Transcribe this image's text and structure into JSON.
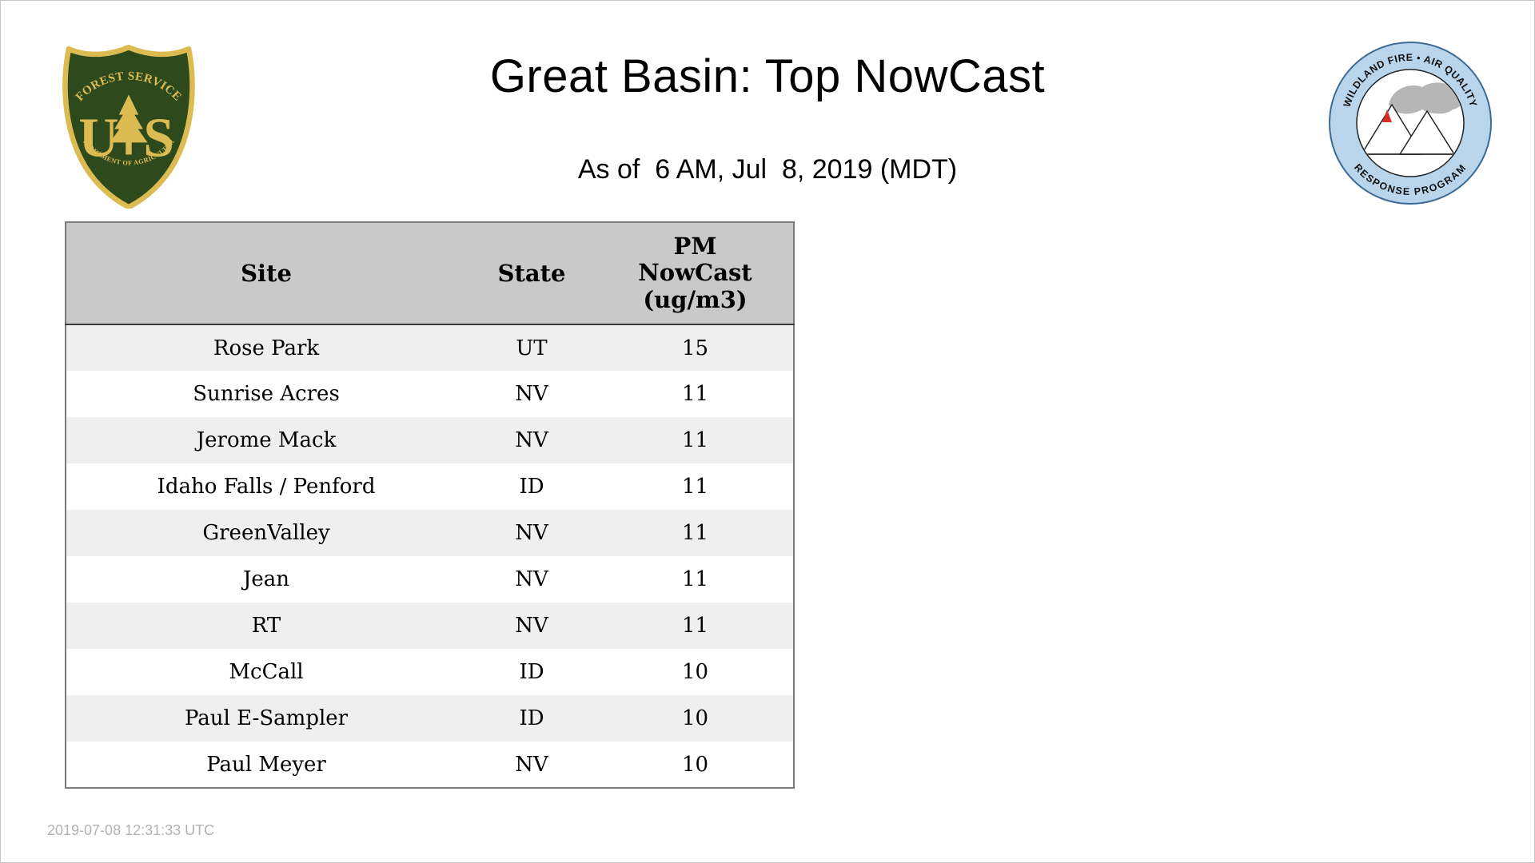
{
  "page": {
    "title": "Great Basin: Top NowCast",
    "subtitle": "As of  6 AM, Jul  8, 2019 (MDT)",
    "footer_timestamp": "2019-07-08 12:31:33 UTC"
  },
  "logos": {
    "forest_service": {
      "name": "US Forest Service",
      "arc_top": "FOREST SERVICE",
      "monogram_left": "U",
      "monogram_right": "S",
      "arc_bottom": "DEPARTMENT OF AGRICULTURE",
      "colors": {
        "shield_green": "#2e4a1d",
        "gold": "#dcbc52"
      }
    },
    "air_quality": {
      "name": "Wildland Fire Air Quality Response Program",
      "arc_top": "WILDLAND FIRE • AIR QUALITY",
      "arc_bottom": "RESPONSE PROGRAM",
      "colors": {
        "ring_blue": "#b9d5eb",
        "outline": "#3d6a94",
        "smoke_gray": "#b6b6b6",
        "flame_red": "#d62f27"
      }
    }
  },
  "table": {
    "columns": [
      {
        "key": "site",
        "label": "Site"
      },
      {
        "key": "state",
        "label": "State"
      },
      {
        "key": "pm",
        "label": "PM\nNowCast\n(ug/m3)"
      }
    ],
    "rows": [
      {
        "site": "Rose Park",
        "state": "UT",
        "pm": "15"
      },
      {
        "site": "Sunrise Acres",
        "state": "NV",
        "pm": "11"
      },
      {
        "site": "Jerome Mack",
        "state": "NV",
        "pm": "11"
      },
      {
        "site": "Idaho Falls / Penford",
        "state": "ID",
        "pm": "11"
      },
      {
        "site": "GreenValley",
        "state": "NV",
        "pm": "11"
      },
      {
        "site": "Jean",
        "state": "NV",
        "pm": "11"
      },
      {
        "site": "RT",
        "state": "NV",
        "pm": "11"
      },
      {
        "site": "McCall",
        "state": "ID",
        "pm": "10"
      },
      {
        "site": "Paul E-Sampler",
        "state": "ID",
        "pm": "10"
      },
      {
        "site": "Paul Meyer",
        "state": "NV",
        "pm": "10"
      }
    ],
    "colors": {
      "header_bg": "#c9c9c9",
      "stripe": "#efefef",
      "border": "#7a7a7a"
    }
  }
}
